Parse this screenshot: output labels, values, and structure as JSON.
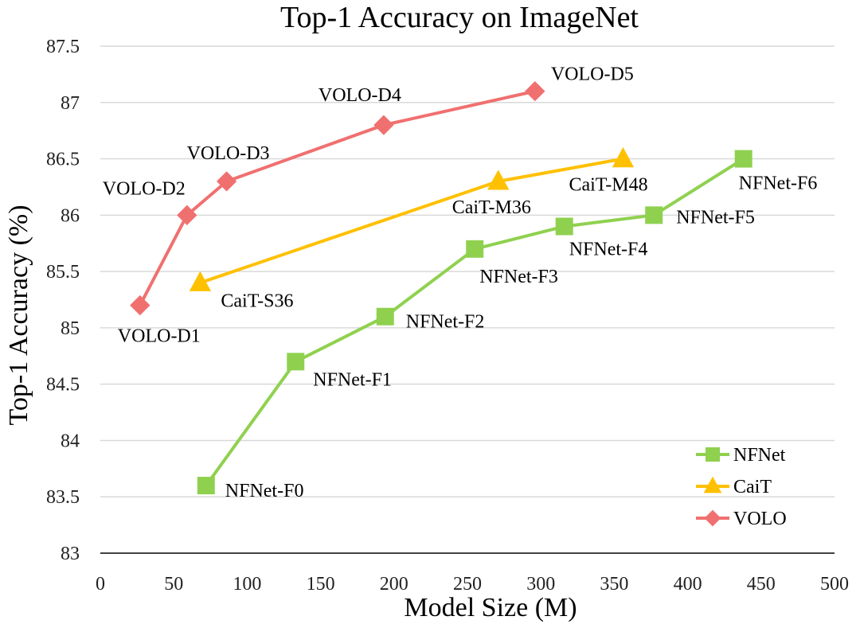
{
  "chart_data": {
    "type": "line",
    "title": "Top-1 Accuracy on ImageNet",
    "xlabel": "Model Size (M)",
    "ylabel": "Top-1 Accuracy (%)",
    "xlim": [
      0,
      500
    ],
    "ylim": [
      83,
      87.5
    ],
    "xticks": [
      "0",
      "50",
      "100",
      "150",
      "200",
      "250",
      "300",
      "350",
      "400",
      "450",
      "500"
    ],
    "yticks": [
      "83",
      "83.5",
      "84",
      "84.5",
      "85",
      "85.5",
      "86",
      "86.5",
      "87",
      "87.5"
    ],
    "grid": "horizontal",
    "legend_position": "bottom-right",
    "series": [
      {
        "name": "NFNet",
        "color": "#8fd14f",
        "marker": "square",
        "points": [
          {
            "x": 72,
            "y": 83.6,
            "label": "NFNet-F0"
          },
          {
            "x": 133,
            "y": 84.7,
            "label": "NFNet-F1"
          },
          {
            "x": 194,
            "y": 85.1,
            "label": "NFNet-F2"
          },
          {
            "x": 255,
            "y": 85.7,
            "label": "NFNet-F3"
          },
          {
            "x": 316,
            "y": 85.9,
            "label": "NFNet-F4"
          },
          {
            "x": 377,
            "y": 86.0,
            "label": "NFNet-F5"
          },
          {
            "x": 438,
            "y": 86.5,
            "label": "NFNet-F6"
          }
        ]
      },
      {
        "name": "CaiT",
        "color": "#ffc000",
        "marker": "triangle",
        "points": [
          {
            "x": 68,
            "y": 85.4,
            "label": "CaiT-S36"
          },
          {
            "x": 271,
            "y": 86.3,
            "label": "CaiT-M36"
          },
          {
            "x": 356,
            "y": 86.5,
            "label": "CaiT-M48"
          }
        ]
      },
      {
        "name": "VOLO",
        "color": "#f07070",
        "marker": "diamond",
        "points": [
          {
            "x": 27,
            "y": 85.2,
            "label": "VOLO-D1"
          },
          {
            "x": 59,
            "y": 86.0,
            "label": "VOLO-D2"
          },
          {
            "x": 86,
            "y": 86.3,
            "label": "VOLO-D3"
          },
          {
            "x": 193,
            "y": 86.8,
            "label": "VOLO-D4"
          },
          {
            "x": 296,
            "y": 87.1,
            "label": "VOLO-D5"
          }
        ]
      }
    ]
  }
}
